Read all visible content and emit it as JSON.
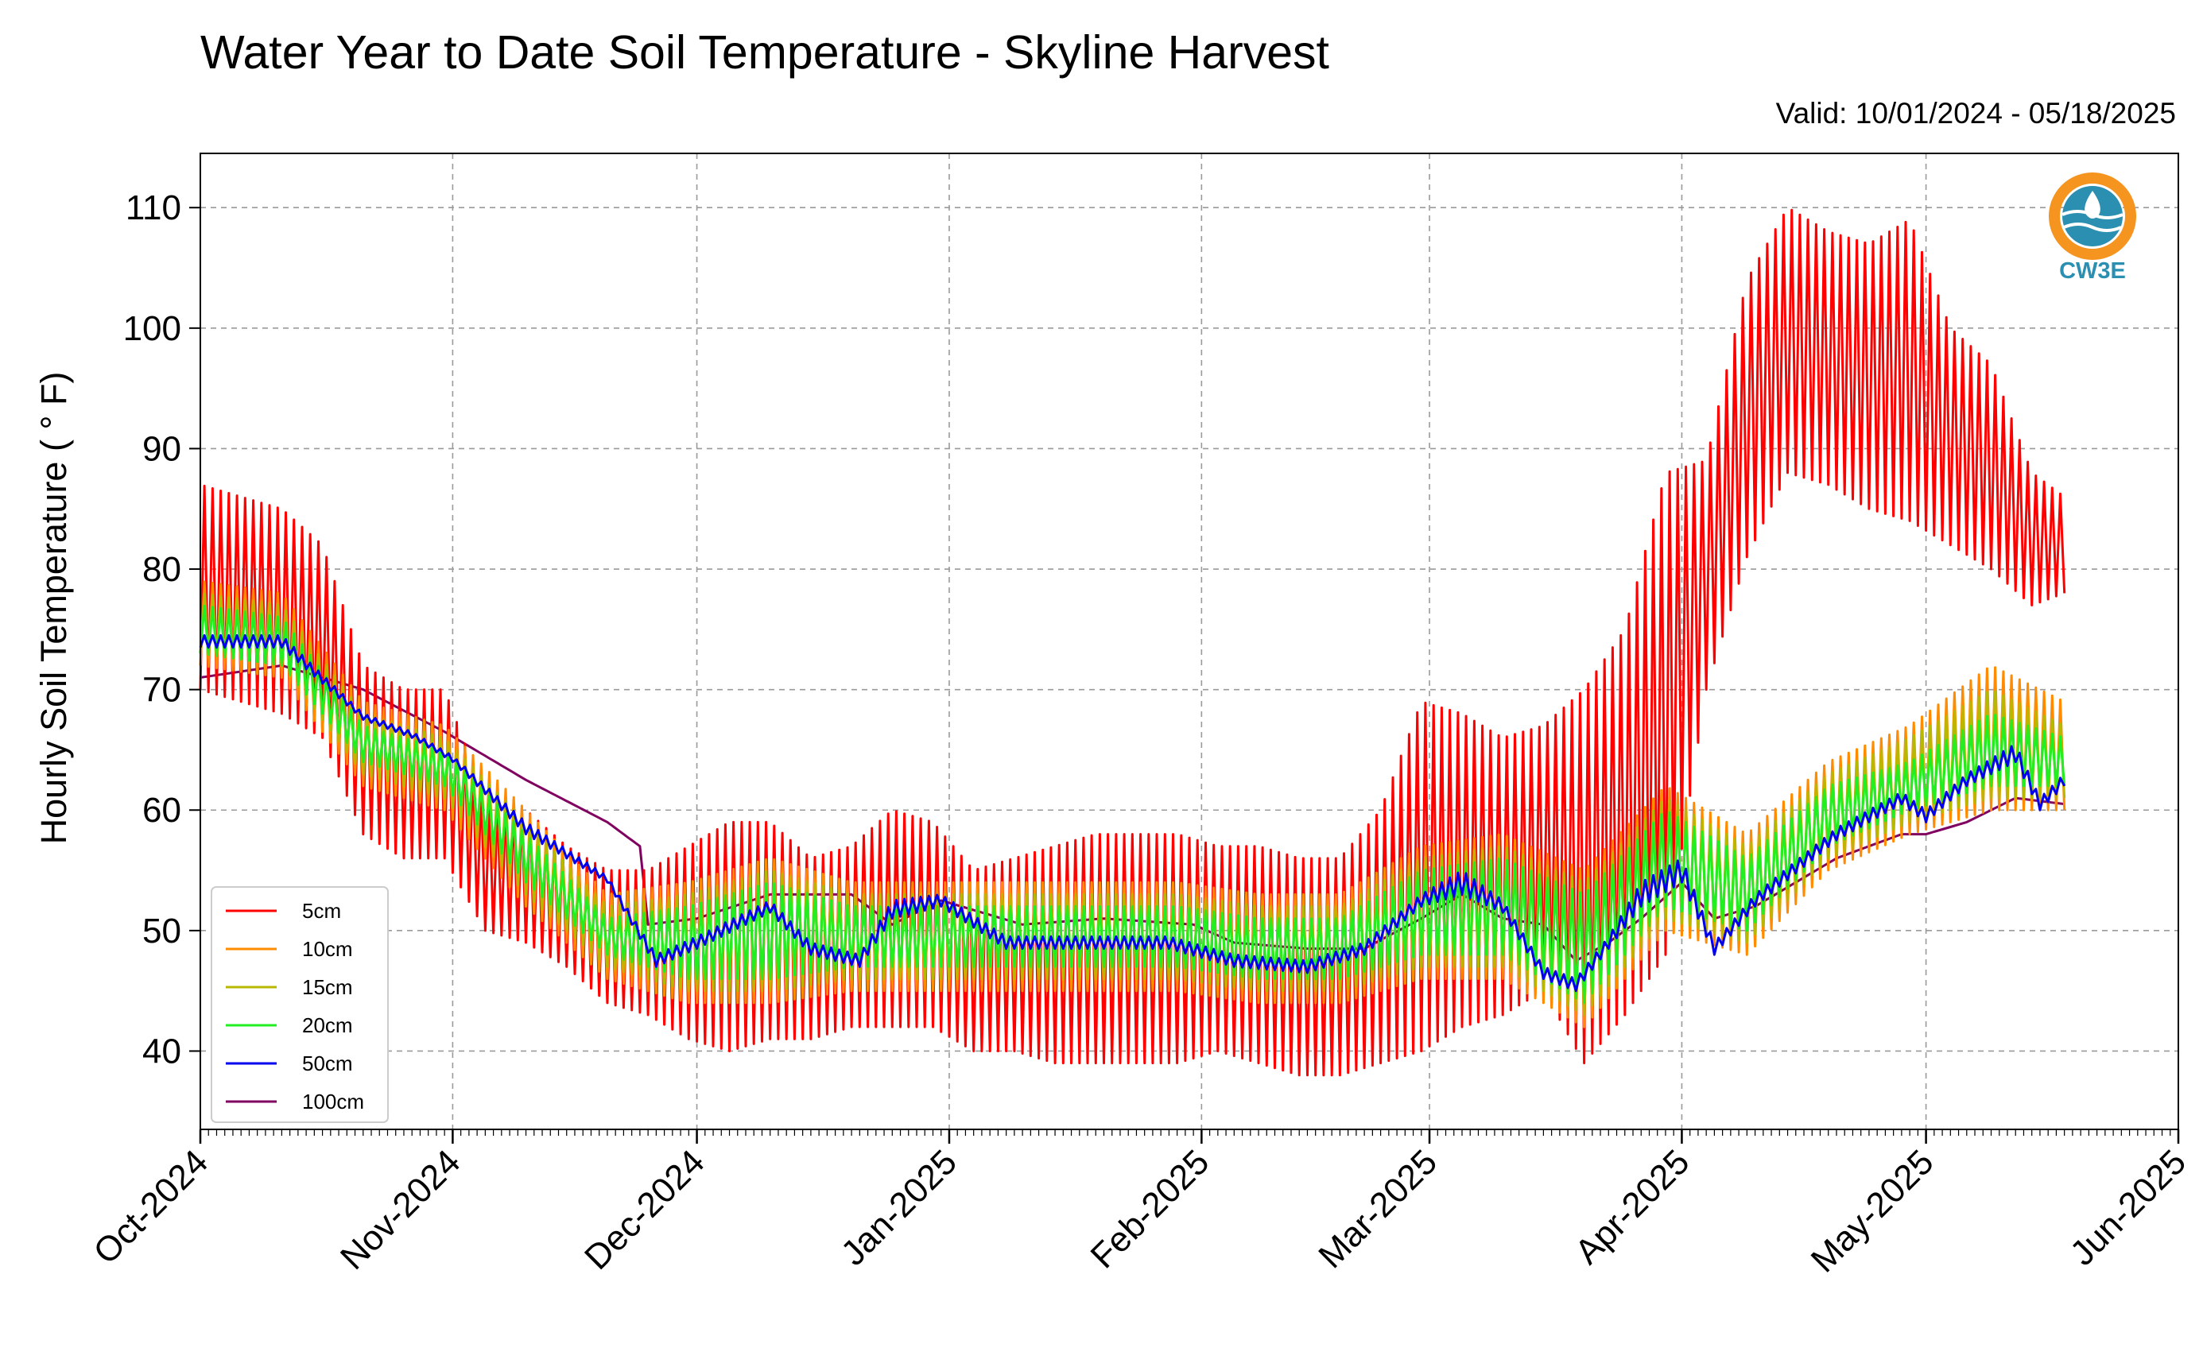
{
  "chart_data": {
    "type": "line",
    "title": "Water Year to Date Soil Temperature - Skyline Harvest",
    "subtitle": "Valid: 10/01/2024 - 05/18/2025",
    "ylabel": "Hourly Soil Temperature ( ° F)",
    "xlabel": "",
    "xlim": [
      "2024-10-01",
      "2025-06-01"
    ],
    "ylim": [
      33.5,
      114.5
    ],
    "grid": true,
    "legend_position": "lower-left",
    "x_ticks": [
      "2024-10-01",
      "2024-11-01",
      "2024-12-01",
      "2025-01-01",
      "2025-02-01",
      "2025-03-01",
      "2025-04-01",
      "2025-05-01",
      "2025-06-01"
    ],
    "x_tick_labels": [
      "Oct-2024",
      "Nov-2024",
      "Dec-2024",
      "Jan-2025",
      "Feb-2025",
      "Mar-2025",
      "Apr-2025",
      "May-2025",
      "Jun-2025"
    ],
    "y_ticks": [
      40,
      50,
      60,
      70,
      80,
      90,
      100,
      110
    ],
    "y_tick_labels": [
      "40",
      "50",
      "60",
      "70",
      "80",
      "90",
      "100",
      "110"
    ],
    "series": [
      {
        "name": "5cm",
        "color": "#ff0000",
        "description": "daily range (min/max)",
        "x": [
          "2024-10-01",
          "2024-10-06",
          "2024-10-11",
          "2024-10-16",
          "2024-10-21",
          "2024-10-26",
          "2024-10-31",
          "2024-11-05",
          "2024-11-10",
          "2024-11-15",
          "2024-11-20",
          "2024-11-25",
          "2024-11-30",
          "2024-12-05",
          "2024-12-10",
          "2024-12-15",
          "2024-12-20",
          "2024-12-25",
          "2024-12-30",
          "2025-01-04",
          "2025-01-09",
          "2025-01-14",
          "2025-01-19",
          "2025-01-24",
          "2025-01-29",
          "2025-02-03",
          "2025-02-08",
          "2025-02-13",
          "2025-02-18",
          "2025-02-23",
          "2025-02-28",
          "2025-03-05",
          "2025-03-10",
          "2025-03-15",
          "2025-03-20",
          "2025-03-25",
          "2025-03-30",
          "2025-04-04",
          "2025-04-09",
          "2025-04-14",
          "2025-04-19",
          "2025-04-24",
          "2025-04-29",
          "2025-05-04",
          "2025-05-09",
          "2025-05-14",
          "2025-05-18"
        ],
        "min": [
          70,
          69,
          68,
          66,
          58,
          56,
          56,
          50,
          49,
          47,
          44,
          43,
          41,
          40,
          41,
          41,
          42,
          42,
          42,
          40,
          40,
          39,
          39,
          39,
          39,
          40,
          39,
          38,
          38,
          39,
          40,
          42,
          43,
          45,
          39,
          43,
          48,
          70,
          81,
          88,
          87,
          85,
          84,
          82,
          80,
          77,
          78
        ],
        "max": [
          87,
          86,
          85,
          82,
          72,
          70,
          70,
          61,
          60,
          57,
          55,
          55,
          57,
          59,
          59,
          56,
          57,
          60,
          59,
          55,
          56,
          57,
          58,
          58,
          58,
          57,
          57,
          56,
          56,
          60,
          69,
          68,
          66,
          67,
          70,
          75,
          88,
          89,
          104,
          110,
          108,
          107,
          109,
          100,
          97,
          88,
          86
        ]
      },
      {
        "name": "10cm",
        "color": "#ff8c00",
        "description": "daily range (min/max)",
        "x": [
          "2024-10-01",
          "2024-10-11",
          "2024-10-21",
          "2024-10-31",
          "2024-11-10",
          "2024-11-20",
          "2024-11-30",
          "2024-12-10",
          "2024-12-20",
          "2024-12-30",
          "2025-01-09",
          "2025-01-19",
          "2025-01-29",
          "2025-02-08",
          "2025-02-18",
          "2025-02-28",
          "2025-03-10",
          "2025-03-20",
          "2025-03-30",
          "2025-04-09",
          "2025-04-19",
          "2025-04-29",
          "2025-05-09",
          "2025-05-18"
        ],
        "min": [
          72,
          71,
          62,
          60,
          52,
          46,
          44,
          44,
          45,
          45,
          45,
          45,
          45,
          44,
          44,
          46,
          46,
          42,
          50,
          48,
          55,
          58,
          60,
          60
        ],
        "max": [
          79,
          78,
          69,
          67,
          60,
          53,
          54,
          56,
          54,
          54,
          54,
          54,
          54,
          53,
          53,
          57,
          58,
          55,
          62,
          58,
          64,
          67,
          72,
          69
        ]
      },
      {
        "name": "15cm",
        "color": "#b8b800",
        "description": "daily range (min/max)",
        "x": [
          "2024-10-01",
          "2024-10-11",
          "2024-10-21",
          "2024-10-31",
          "2024-11-10",
          "2024-11-20",
          "2024-11-30",
          "2024-12-10",
          "2024-12-20",
          "2024-12-30",
          "2025-01-09",
          "2025-01-19",
          "2025-01-29",
          "2025-02-08",
          "2025-02-18",
          "2025-02-28",
          "2025-03-10",
          "2025-03-20",
          "2025-03-30",
          "2025-04-09",
          "2025-04-19",
          "2025-04-29",
          "2025-05-09",
          "2025-05-18"
        ],
        "min": [
          73,
          72,
          63,
          61,
          53,
          47,
          45,
          45,
          46,
          46,
          46,
          46,
          46,
          45,
          45,
          47,
          47,
          43,
          51,
          49,
          56,
          59,
          61,
          61
        ],
        "max": [
          78,
          77,
          68,
          66,
          59,
          52,
          53,
          55,
          53,
          53,
          53,
          53,
          53,
          52,
          52,
          56,
          57,
          54,
          61,
          57,
          63,
          66,
          70,
          67
        ]
      },
      {
        "name": "20cm",
        "color": "#22ee22",
        "description": "daily range (min/max)",
        "x": [
          "2024-10-01",
          "2024-10-11",
          "2024-10-21",
          "2024-10-31",
          "2024-11-10",
          "2024-11-20",
          "2024-11-30",
          "2024-12-10",
          "2024-12-20",
          "2024-12-30",
          "2025-01-09",
          "2025-01-19",
          "2025-01-29",
          "2025-02-08",
          "2025-02-18",
          "2025-02-28",
          "2025-03-10",
          "2025-03-20",
          "2025-03-30",
          "2025-04-09",
          "2025-04-19",
          "2025-04-29",
          "2025-05-09",
          "2025-05-18"
        ],
        "min": [
          73,
          72,
          64,
          62,
          54,
          48,
          46,
          46,
          47,
          47,
          47,
          47,
          47,
          46,
          46,
          48,
          48,
          44,
          52,
          50,
          57,
          60,
          62,
          62
        ],
        "max": [
          77,
          76,
          67,
          65,
          58,
          51,
          52,
          54,
          52,
          52,
          52,
          52,
          52,
          51,
          51,
          55,
          56,
          53,
          60,
          56,
          62,
          64,
          68,
          66
        ]
      },
      {
        "name": "50cm",
        "color": "#0000ee",
        "x": [
          "2024-10-01",
          "2024-10-11",
          "2024-10-21",
          "2024-10-27",
          "2024-11-01",
          "2024-11-10",
          "2024-11-20",
          "2024-11-26",
          "2024-12-01",
          "2024-12-10",
          "2024-12-15",
          "2024-12-21",
          "2024-12-25",
          "2024-12-31",
          "2025-01-08",
          "2025-01-18",
          "2025-01-28",
          "2025-02-05",
          "2025-02-14",
          "2025-02-21",
          "2025-02-28",
          "2025-03-05",
          "2025-03-10",
          "2025-03-15",
          "2025-03-19",
          "2025-03-23",
          "2025-03-27",
          "2025-04-01",
          "2025-04-05",
          "2025-04-10",
          "2025-04-20",
          "2025-04-28",
          "2025-05-01",
          "2025-05-06",
          "2025-05-12",
          "2025-05-15",
          "2025-05-18"
        ],
        "min": [
          73.5,
          73.5,
          67.5,
          66,
          64,
          58,
          54,
          47,
          48.5,
          51.5,
          48,
          47,
          51,
          52,
          48.5,
          48.5,
          48.5,
          47,
          46.5,
          48,
          52,
          53,
          51.5,
          46,
          45,
          48.5,
          52,
          54,
          48,
          52,
          57.5,
          60.5,
          59,
          62,
          64,
          60,
          62
        ],
        "max": [
          74.5,
          74.5,
          68,
          66.5,
          64.5,
          59,
          54.5,
          48,
          49.5,
          52.5,
          49,
          48,
          52.5,
          53,
          49.5,
          49.5,
          49.5,
          48,
          47.5,
          49,
          53,
          55,
          52.5,
          47,
          46,
          49.5,
          54,
          56,
          49,
          53,
          58.5,
          61.5,
          60,
          63,
          65.5,
          61,
          63
        ]
      },
      {
        "name": "100cm",
        "color": "#800060",
        "x": [
          "2024-10-01",
          "2024-10-11",
          "2024-10-21",
          "2024-10-31",
          "2024-11-10",
          "2024-11-20",
          "2024-11-24",
          "2024-11-25",
          "2024-12-01",
          "2024-12-10",
          "2024-12-20",
          "2024-12-25",
          "2024-12-31",
          "2025-01-10",
          "2025-01-20",
          "2025-01-31",
          "2025-02-05",
          "2025-02-14",
          "2025-02-21",
          "2025-02-28",
          "2025-03-05",
          "2025-03-10",
          "2025-03-15",
          "2025-03-19",
          "2025-03-23",
          "2025-03-27",
          "2025-04-01",
          "2025-04-05",
          "2025-04-10",
          "2025-04-20",
          "2025-04-28",
          "2025-05-01",
          "2025-05-06",
          "2025-05-12",
          "2025-05-18"
        ],
        "y": [
          71,
          72,
          70,
          66.5,
          62.5,
          59,
          57,
          50.5,
          51,
          53,
          53,
          50.5,
          52.5,
          50.5,
          51,
          50.5,
          49,
          48.5,
          48.5,
          51,
          53,
          51,
          50.5,
          47.5,
          49,
          51,
          54,
          51,
          52,
          56,
          58,
          58,
          59,
          61,
          60.5
        ]
      }
    ]
  },
  "logo": {
    "text": "CW3E",
    "icon": "water-drop-globe-icon",
    "colors": {
      "ring": "#f5941e",
      "globe": "#2a8fb0"
    }
  }
}
